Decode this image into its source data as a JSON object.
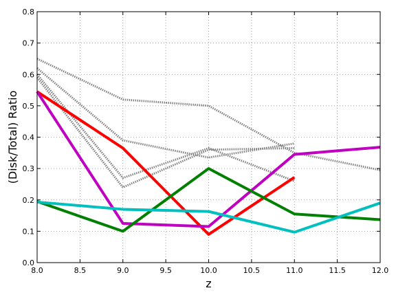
{
  "chart_data": {
    "type": "line",
    "title": "",
    "xlabel": "z",
    "ylabel": "(Disk/Total) Ratio",
    "xlim": [
      8.0,
      12.0
    ],
    "ylim": [
      0.0,
      0.8
    ],
    "grid": true,
    "x_ticks": [
      "8.0",
      "8.5",
      "9.0",
      "9.5",
      "10.0",
      "10.5",
      "11.0",
      "11.5",
      "12.0"
    ],
    "y_ticks": [
      "0.0",
      "0.1",
      "0.2",
      "0.3",
      "0.4",
      "0.5",
      "0.6",
      "0.7",
      "0.8"
    ],
    "series": [
      {
        "style": "dotted",
        "color": "#808080",
        "points": [
          [
            8.0,
            0.65
          ],
          [
            9.0,
            0.52
          ],
          [
            10.0,
            0.5
          ],
          [
            11.0,
            0.35
          ],
          [
            12.0,
            0.295
          ]
        ]
      },
      {
        "style": "dotted",
        "color": "#808080",
        "points": [
          [
            8.0,
            0.62
          ],
          [
            9.0,
            0.39
          ],
          [
            10.0,
            0.335
          ],
          [
            11.0,
            0.38
          ]
        ]
      },
      {
        "style": "dotted",
        "color": "#808080",
        "points": [
          [
            8.0,
            0.6
          ],
          [
            9.0,
            0.27
          ],
          [
            10.0,
            0.365
          ],
          [
            11.0,
            0.26
          ]
        ]
      },
      {
        "style": "dotted",
        "color": "#808080",
        "points": [
          [
            8.0,
            0.59
          ],
          [
            9.0,
            0.24
          ],
          [
            10.0,
            0.36
          ],
          [
            11.0,
            0.365
          ]
        ]
      },
      {
        "style": "solid",
        "color": "#ff0000",
        "points": [
          [
            8.0,
            0.545
          ],
          [
            9.0,
            0.365
          ],
          [
            10.0,
            0.09
          ],
          [
            11.0,
            0.272
          ]
        ]
      },
      {
        "style": "solid",
        "color": "#c000c0",
        "points": [
          [
            8.0,
            0.545
          ],
          [
            9.0,
            0.125
          ],
          [
            10.0,
            0.115
          ],
          [
            11.0,
            0.345
          ],
          [
            12.0,
            0.368
          ]
        ]
      },
      {
        "style": "solid",
        "color": "#008000",
        "points": [
          [
            8.0,
            0.195
          ],
          [
            9.0,
            0.1
          ],
          [
            10.0,
            0.3
          ],
          [
            11.0,
            0.155
          ],
          [
            12.0,
            0.137
          ]
        ]
      },
      {
        "style": "solid",
        "color": "#00bfbf",
        "points": [
          [
            8.0,
            0.193
          ],
          [
            9.0,
            0.17
          ],
          [
            10.0,
            0.163
          ],
          [
            11.0,
            0.097
          ],
          [
            12.0,
            0.19
          ]
        ]
      }
    ]
  }
}
